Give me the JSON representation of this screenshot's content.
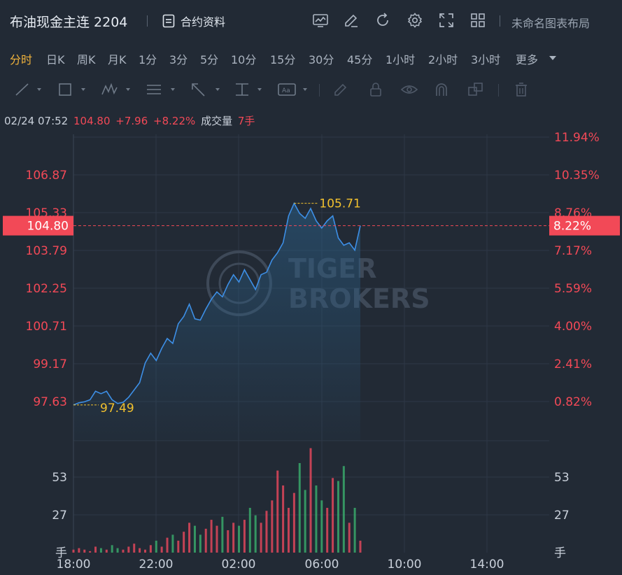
{
  "header": {
    "title": "布油现金主连 2204",
    "contract_info_label": "合约资料",
    "layout_label": "未命名图表布局",
    "icons": [
      "chart-template-icon",
      "draw-edit-icon",
      "refresh-icon",
      "settings-icon",
      "fullscreen-icon",
      "layout-grid-icon"
    ]
  },
  "periods": {
    "items": [
      "分时",
      "日K",
      "周K",
      "月K",
      "1分",
      "3分",
      "5分",
      "10分",
      "15分",
      "30分",
      "45分",
      "1小时",
      "2小时",
      "3小时",
      "更多"
    ],
    "active": "分时"
  },
  "drawing_tools": [
    "line-tool-icon",
    "rectangle-tool-icon",
    "wave-tool-icon",
    "fib-tool-icon",
    "arrow-tool-icon",
    "price-level-tool-icon",
    "text-label-tool-icon",
    "pencil-icon",
    "lock-icon",
    "eye-icon",
    "magnet-icon",
    "layers-icon",
    "trash-icon"
  ],
  "readout": {
    "datetime": "02/24 07:52",
    "price": "104.80",
    "change": "+7.96",
    "change_pct": "+8.22%",
    "volume_label": "成交量",
    "volume": "7手"
  },
  "colors": {
    "up": "#f24957",
    "line": "#3d8fe6",
    "highlight": "#f2c12e",
    "background": "#222a35"
  },
  "watermark": {
    "line1": "TIGER",
    "line2": "BROKERS"
  },
  "chart_data": {
    "type": "line",
    "price_axis_ticks": [
      "106.87",
      "105.33",
      "103.79",
      "102.25",
      "100.71",
      "99.17",
      "97.63"
    ],
    "percent_axis_ticks": [
      "11.94%",
      "10.35%",
      "8.76%",
      "7.17%",
      "5.59%",
      "4.00%",
      "2.41%",
      "0.82%"
    ],
    "time_axis_ticks": [
      "18:00",
      "22:00",
      "02:00",
      "06:00",
      "10:00",
      "14:00"
    ],
    "volume_ticks": [
      "53",
      "27"
    ],
    "volume_unit": "手",
    "current_price_label": "104.80",
    "current_pct_label": "8.22%",
    "high_label": "105.71",
    "low_label": "97.49",
    "ylim": [
      96.0,
      108.5
    ],
    "series": [
      {
        "values": [
          97.49,
          97.58,
          97.62,
          97.7,
          98.05,
          97.95,
          98.05,
          97.7,
          97.55,
          97.6,
          97.8,
          98.1,
          98.4,
          99.2,
          99.6,
          99.3,
          99.8,
          100.2,
          100.0,
          100.8,
          101.1,
          101.6,
          101.0,
          100.95,
          101.4,
          101.8,
          102.1,
          101.9,
          102.4,
          102.8,
          102.5,
          103.0,
          102.6,
          102.2,
          102.8,
          102.9,
          103.4,
          103.7,
          104.1,
          105.2,
          105.71,
          105.3,
          105.1,
          105.5,
          105.0,
          104.7,
          105.0,
          105.2,
          104.3,
          104.0,
          104.1,
          103.8,
          104.8
        ]
      }
    ],
    "volume": [
      2,
      3,
      2,
      1,
      4,
      3,
      2,
      5,
      3,
      2,
      4,
      6,
      3,
      2,
      5,
      8,
      4,
      10,
      12,
      8,
      14,
      20,
      18,
      12,
      16,
      22,
      18,
      24,
      15,
      20,
      18,
      22,
      30,
      25,
      20,
      28,
      35,
      55,
      45,
      30,
      40,
      60,
      42,
      70,
      45,
      35,
      30,
      50,
      48,
      58,
      20,
      30,
      8
    ]
  }
}
